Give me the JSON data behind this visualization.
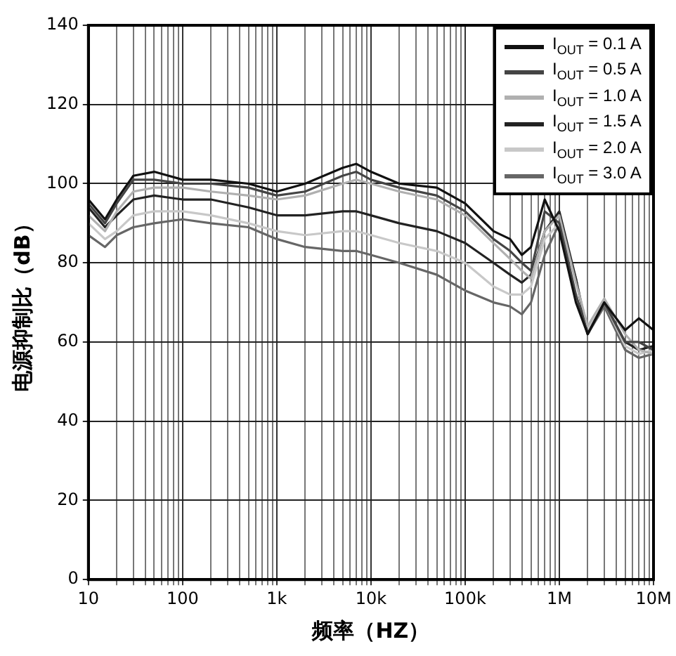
{
  "chart_data": {
    "type": "line",
    "xlabel": "频率（HZ）",
    "ylabel": "电源抑制比（dB）",
    "log": "x",
    "grid": true,
    "legend": "top right",
    "marker": "none",
    "line_style": "solid",
    "x": [
      10,
      15,
      20,
      30,
      50,
      100,
      200,
      500,
      1000,
      2000,
      5000,
      7000,
      10000,
      20000,
      50000,
      100000,
      200000,
      300000,
      400000,
      500000,
      700000,
      1000000,
      1500000,
      2000000,
      3000000,
      5000000,
      7000000,
      10000000
    ],
    "xlim": [
      10,
      10000000
    ],
    "ylim": [
      0,
      140
    ],
    "yticks": [
      0,
      20,
      40,
      60,
      80,
      100,
      120,
      140
    ],
    "xticks": [
      {
        "value": 10,
        "label": "10"
      },
      {
        "value": 20,
        "label": null
      },
      {
        "value": 30,
        "label": null
      },
      {
        "value": 40,
        "label": null
      },
      {
        "value": 50,
        "label": null
      },
      {
        "value": 60,
        "label": null
      },
      {
        "value": 70,
        "label": null
      },
      {
        "value": 80,
        "label": null
      },
      {
        "value": 90,
        "label": null
      },
      {
        "value": 100,
        "label": "100"
      },
      {
        "value": 200,
        "label": null
      },
      {
        "value": 300,
        "label": null
      },
      {
        "value": 400,
        "label": null
      },
      {
        "value": 500,
        "label": null
      },
      {
        "value": 600,
        "label": null
      },
      {
        "value": 700,
        "label": null
      },
      {
        "value": 800,
        "label": null
      },
      {
        "value": 900,
        "label": null
      },
      {
        "value": 1000,
        "label": "1k"
      },
      {
        "value": 2000,
        "label": null
      },
      {
        "value": 3000,
        "label": null
      },
      {
        "value": 4000,
        "label": null
      },
      {
        "value": 5000,
        "label": null
      },
      {
        "value": 6000,
        "label": null
      },
      {
        "value": 7000,
        "label": null
      },
      {
        "value": 8000,
        "label": null
      },
      {
        "value": 9000,
        "label": null
      },
      {
        "value": 10000,
        "label": "10k"
      },
      {
        "value": 20000,
        "label": null
      },
      {
        "value": 30000,
        "label": null
      },
      {
        "value": 40000,
        "label": null
      },
      {
        "value": 50000,
        "label": null
      },
      {
        "value": 60000,
        "label": null
      },
      {
        "value": 70000,
        "label": null
      },
      {
        "value": 80000,
        "label": null
      },
      {
        "value": 90000,
        "label": null
      },
      {
        "value": 100000,
        "label": "100k"
      },
      {
        "value": 200000,
        "label": null
      },
      {
        "value": 300000,
        "label": null
      },
      {
        "value": 400000,
        "label": null
      },
      {
        "value": 500000,
        "label": null
      },
      {
        "value": 600000,
        "label": null
      },
      {
        "value": 700000,
        "label": null
      },
      {
        "value": 800000,
        "label": null
      },
      {
        "value": 900000,
        "label": null
      },
      {
        "value": 1000000,
        "label": "1M"
      },
      {
        "value": 2000000,
        "label": null
      },
      {
        "value": 3000000,
        "label": null
      },
      {
        "value": 4000000,
        "label": null
      },
      {
        "value": 5000000,
        "label": null
      },
      {
        "value": 6000000,
        "label": null
      },
      {
        "value": 7000000,
        "label": null
      },
      {
        "value": 8000000,
        "label": null
      },
      {
        "value": 9000000,
        "label": null
      },
      {
        "value": 10000000,
        "label": "10M"
      }
    ],
    "series": [
      {
        "name": "I$_{OUT}$ = 0.1 A",
        "color": "#111111",
        "values": [
          96,
          91,
          96,
          102,
          103,
          101,
          101,
          100,
          98,
          100,
          104,
          105,
          103,
          100,
          99,
          95,
          88,
          86,
          82,
          84,
          96,
          88,
          70,
          62,
          70,
          63,
          66,
          63
        ]
      },
      {
        "name": "I$_{OUT}$ = 0.5 A",
        "color": "#444444",
        "values": [
          95,
          90,
          95,
          101,
          101,
          100,
          100,
          99,
          97,
          98,
          102,
          103,
          101,
          99,
          97,
          93,
          86,
          83,
          80,
          78,
          93,
          90,
          72,
          62,
          70,
          60,
          60,
          58
        ]
      },
      {
        "name": "I$_{OUT}$ = 1.0 A",
        "color": "#b0b0b0",
        "values": [
          92,
          88,
          93,
          98,
          99,
          99,
          98,
          97,
          96,
          97,
          100,
          101,
          100,
          98,
          96,
          92,
          85,
          81,
          78,
          76,
          88,
          92,
          75,
          64,
          71,
          62,
          58,
          57
        ]
      },
      {
        "name": "I$_{OUT}$ = 1.5 A",
        "color": "#222222",
        "values": [
          94,
          89,
          92,
          96,
          97,
          96,
          96,
          94,
          92,
          92,
          93,
          93,
          92,
          90,
          88,
          85,
          80,
          77,
          75,
          77,
          88,
          93,
          76,
          62,
          70,
          60,
          58,
          59
        ]
      },
      {
        "name": "I$_{OUT}$ = 2.0 A",
        "color": "#c8c8c8",
        "values": [
          90,
          86,
          88,
          92,
          93,
          93,
          92,
          90,
          88,
          87,
          88,
          88,
          87,
          85,
          83,
          80,
          74,
          72,
          72,
          74,
          86,
          90,
          76,
          63,
          70,
          59,
          57,
          58
        ]
      },
      {
        "name": "I$_{OUT}$ = 3.0 A",
        "color": "#666666",
        "values": [
          87,
          84,
          87,
          89,
          90,
          91,
          90,
          89,
          86,
          84,
          83,
          83,
          82,
          80,
          77,
          73,
          70,
          69,
          67,
          70,
          82,
          90,
          76,
          62,
          69,
          58,
          56,
          57
        ]
      }
    ]
  }
}
